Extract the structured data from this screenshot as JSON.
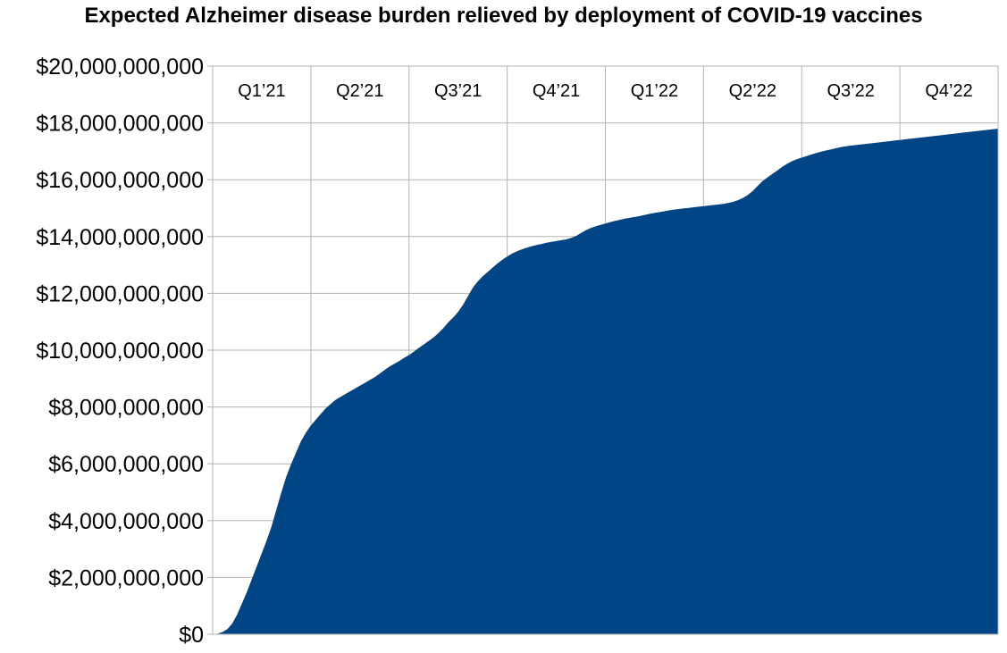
{
  "chart_data": {
    "type": "area",
    "title": "Expected Alzheimer disease burden relieved by deployment of COVID-19 vaccines",
    "xlabel": "",
    "ylabel": "",
    "ylim": [
      0,
      20000000000
    ],
    "yticks": [
      0,
      2000000000,
      4000000000,
      6000000000,
      8000000000,
      10000000000,
      12000000000,
      14000000000,
      16000000000,
      18000000000,
      20000000000
    ],
    "ytick_labels": [
      "$0",
      "$2,000,000,000",
      "$4,000,000,000",
      "$6,000,000,000",
      "$8,000,000,000",
      "$10,000,000,000",
      "$12,000,000,000",
      "$14,000,000,000",
      "$16,000,000,000",
      "$18,000,000,000",
      "$20,000,000,000"
    ],
    "quarters": [
      "Q1’21",
      "Q2’21",
      "Q3’21",
      "Q4’21",
      "Q1’22",
      "Q2’22",
      "Q3’22",
      "Q4’22"
    ],
    "grid": true,
    "color": "#004586",
    "x": [
      0,
      0.05,
      0.1,
      0.15,
      0.2,
      0.25,
      0.3,
      0.35,
      0.4,
      0.45,
      0.5,
      0.55,
      0.6,
      0.65,
      0.7,
      0.75,
      0.8,
      0.85,
      0.9,
      0.95,
      1.0,
      1.05,
      1.1,
      1.15,
      1.2,
      1.25,
      1.3,
      1.35,
      1.4,
      1.45,
      1.5,
      1.55,
      1.6,
      1.65,
      1.7,
      1.75,
      1.8,
      1.85,
      1.9,
      1.95,
      2.0,
      2.05,
      2.1,
      2.15,
      2.2,
      2.25,
      2.3,
      2.35,
      2.4,
      2.45,
      2.5,
      2.55,
      2.6,
      2.65,
      2.7,
      2.75,
      2.8,
      2.85,
      2.9,
      2.95,
      3.0,
      3.05,
      3.1,
      3.15,
      3.2,
      3.25,
      3.3,
      3.35,
      3.4,
      3.45,
      3.5,
      3.55,
      3.6,
      3.65,
      3.7,
      3.75,
      3.8,
      3.85,
      3.9,
      3.95,
      4.0,
      4.05,
      4.1,
      4.15,
      4.2,
      4.25,
      4.3,
      4.35,
      4.4,
      4.45,
      4.5,
      4.55,
      4.6,
      4.65,
      4.7,
      4.75,
      4.8,
      4.85,
      4.9,
      4.95,
      5.0,
      5.05,
      5.1,
      5.15,
      5.2,
      5.25,
      5.3,
      5.35,
      5.4,
      5.45,
      5.5,
      5.55,
      5.6,
      5.65,
      5.7,
      5.75,
      5.8,
      5.85,
      5.9,
      5.95,
      6.0,
      6.05,
      6.1,
      6.15,
      6.2,
      6.25,
      6.3,
      6.35,
      6.4,
      6.45,
      6.5,
      6.55,
      6.6,
      6.65,
      6.7,
      6.75,
      6.8,
      6.85,
      6.9,
      6.95,
      7.0,
      7.05,
      7.1,
      7.15,
      7.2,
      7.25,
      7.3,
      7.35,
      7.4,
      7.45,
      7.5,
      7.55,
      7.6,
      7.65,
      7.7,
      7.75,
      7.8,
      7.85,
      7.9,
      7.95,
      8.0
    ],
    "values": [
      0,
      20000000,
      80000000,
      180000000,
      380000000,
      700000000,
      1100000000,
      1500000000,
      1950000000,
      2400000000,
      2850000000,
      3300000000,
      3800000000,
      4400000000,
      5000000000,
      5550000000,
      6000000000,
      6400000000,
      6800000000,
      7100000000,
      7350000000,
      7550000000,
      7750000000,
      7950000000,
      8100000000,
      8250000000,
      8350000000,
      8450000000,
      8550000000,
      8650000000,
      8750000000,
      8850000000,
      8950000000,
      9050000000,
      9170000000,
      9300000000,
      9420000000,
      9520000000,
      9620000000,
      9730000000,
      9830000000,
      9950000000,
      10080000000,
      10200000000,
      10320000000,
      10450000000,
      10600000000,
      10780000000,
      10980000000,
      11150000000,
      11350000000,
      11600000000,
      11900000000,
      12200000000,
      12420000000,
      12600000000,
      12750000000,
      12900000000,
      13050000000,
      13180000000,
      13300000000,
      13400000000,
      13480000000,
      13550000000,
      13610000000,
      13660000000,
      13700000000,
      13740000000,
      13780000000,
      13810000000,
      13840000000,
      13870000000,
      13900000000,
      13950000000,
      14020000000,
      14120000000,
      14220000000,
      14300000000,
      14360000000,
      14410000000,
      14460000000,
      14510000000,
      14550000000,
      14590000000,
      14630000000,
      14660000000,
      14690000000,
      14720000000,
      14760000000,
      14800000000,
      14830000000,
      14860000000,
      14890000000,
      14920000000,
      14950000000,
      14970000000,
      14990000000,
      15010000000,
      15030000000,
      15050000000,
      15070000000,
      15090000000,
      15110000000,
      15130000000,
      15150000000,
      15180000000,
      15220000000,
      15280000000,
      15360000000,
      15460000000,
      15600000000,
      15780000000,
      15950000000,
      16080000000,
      16200000000,
      16320000000,
      16450000000,
      16560000000,
      16650000000,
      16720000000,
      16780000000,
      16830000000,
      16890000000,
      16940000000,
      16990000000,
      17030000000,
      17070000000,
      17110000000,
      17150000000,
      17180000000,
      17200000000,
      17220000000,
      17240000000,
      17260000000,
      17280000000,
      17300000000,
      17320000000,
      17340000000,
      17360000000,
      17380000000,
      17400000000,
      17420000000,
      17440000000,
      17460000000,
      17480000000,
      17500000000,
      17520000000,
      17540000000,
      17560000000,
      17580000000,
      17600000000,
      17620000000,
      17640000000,
      17660000000,
      17680000000,
      17700000000,
      17720000000,
      17740000000,
      17760000000,
      17780000000,
      17800000000
    ]
  }
}
